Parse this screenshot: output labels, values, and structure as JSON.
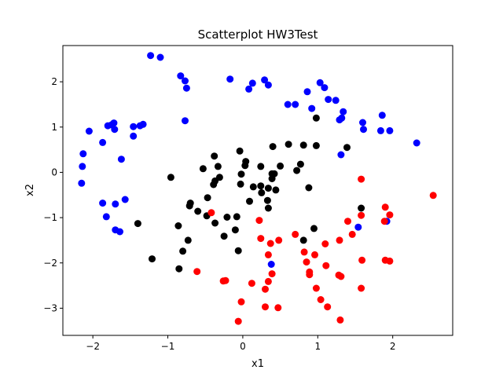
{
  "chart_data": {
    "type": "scatter",
    "title": "Scatterplot HW3Test",
    "xlabel": "x1",
    "ylabel": "x2",
    "xlim": [
      -2.4,
      2.8
    ],
    "ylim": [
      -3.6,
      2.8
    ],
    "xticks": [
      -2,
      -1,
      0,
      1,
      2
    ],
    "yticks": [
      -3,
      -2,
      -1,
      0,
      1,
      2
    ],
    "grid": false,
    "series": [
      {
        "color": "#0000ff",
        "points": [
          [
            -1.23,
            2.58
          ],
          [
            -1.1,
            2.54
          ],
          [
            -0.83,
            2.13
          ],
          [
            -0.77,
            2.02
          ],
          [
            -0.75,
            1.86
          ],
          [
            -0.17,
            2.06
          ],
          [
            0.08,
            1.84
          ],
          [
            0.13,
            1.97
          ],
          [
            0.29,
            2.04
          ],
          [
            0.34,
            1.93
          ],
          [
            1.03,
            1.98
          ],
          [
            1.09,
            1.87
          ],
          [
            0.86,
            1.78
          ],
          [
            1.14,
            1.61
          ],
          [
            1.24,
            1.59
          ],
          [
            0.6,
            1.5
          ],
          [
            0.7,
            1.5
          ],
          [
            0.92,
            1.41
          ],
          [
            1.34,
            1.34
          ],
          [
            1.29,
            1.16
          ],
          [
            1.32,
            1.2
          ],
          [
            1.6,
            1.1
          ],
          [
            1.61,
            0.95
          ],
          [
            1.86,
            1.26
          ],
          [
            1.84,
            0.92
          ],
          [
            1.96,
            0.92
          ],
          [
            2.32,
            0.65
          ],
          [
            1.31,
            0.39
          ],
          [
            -0.77,
            1.14
          ],
          [
            -1.72,
            1.09
          ],
          [
            -1.75,
            1.05
          ],
          [
            -1.8,
            1.03
          ],
          [
            -1.71,
            0.95
          ],
          [
            -1.46,
            1.01
          ],
          [
            -1.37,
            1.03
          ],
          [
            -1.33,
            1.06
          ],
          [
            -1.46,
            0.8
          ],
          [
            -2.05,
            0.91
          ],
          [
            -1.87,
            0.66
          ],
          [
            -1.62,
            0.29
          ],
          [
            -2.13,
            0.41
          ],
          [
            -2.14,
            0.13
          ],
          [
            -2.15,
            -0.24
          ],
          [
            -1.87,
            -0.68
          ],
          [
            -1.7,
            -0.7
          ],
          [
            -1.57,
            -0.6
          ],
          [
            -1.82,
            -0.98
          ],
          [
            -1.7,
            -1.27
          ],
          [
            -1.64,
            -1.31
          ],
          [
            0.38,
            -2.03
          ],
          [
            1.54,
            -1.21
          ],
          [
            1.92,
            -1.08
          ]
        ]
      },
      {
        "color": "#000000",
        "points": [
          [
            -0.38,
            0.36
          ],
          [
            -0.53,
            0.08
          ],
          [
            -0.33,
            0.13
          ],
          [
            -0.04,
            0.47
          ],
          [
            0.04,
            0.24
          ],
          [
            0.03,
            0.15
          ],
          [
            0.24,
            0.13
          ],
          [
            0.4,
            0.57
          ],
          [
            0.61,
            0.62
          ],
          [
            0.81,
            0.6
          ],
          [
            0.98,
            0.59
          ],
          [
            1.39,
            0.55
          ],
          [
            0.98,
            1.2
          ],
          [
            0.5,
            0.14
          ],
          [
            0.72,
            0.04
          ],
          [
            0.77,
            0.18
          ],
          [
            0.88,
            -0.34
          ],
          [
            0.39,
            -0.03
          ],
          [
            0.42,
            -0.03
          ],
          [
            0.44,
            -0.39
          ],
          [
            0.39,
            -0.14
          ],
          [
            0.34,
            -0.35
          ],
          [
            0.24,
            -0.3
          ],
          [
            0.14,
            -0.32
          ],
          [
            0.25,
            -0.45
          ],
          [
            0.33,
            -0.62
          ],
          [
            0.09,
            -0.64
          ],
          [
            0.34,
            -0.79
          ],
          [
            -0.02,
            -0.04
          ],
          [
            -0.03,
            -0.26
          ],
          [
            -0.31,
            -0.11
          ],
          [
            -0.37,
            -0.19
          ],
          [
            -0.39,
            -0.27
          ],
          [
            -0.47,
            -0.56
          ],
          [
            -0.6,
            -0.86
          ],
          [
            -0.7,
            -0.68
          ],
          [
            -0.71,
            -0.74
          ],
          [
            -0.48,
            -0.96
          ],
          [
            -0.37,
            -1.12
          ],
          [
            -0.21,
            -0.99
          ],
          [
            -0.08,
            -0.98
          ],
          [
            -0.1,
            -1.27
          ],
          [
            -0.25,
            -1.41
          ],
          [
            -0.86,
            -1.18
          ],
          [
            -0.73,
            -1.5
          ],
          [
            -0.8,
            -1.74
          ],
          [
            -0.96,
            -0.11
          ],
          [
            -1.4,
            -1.13
          ],
          [
            -1.21,
            -1.91
          ],
          [
            -0.85,
            -2.13
          ],
          [
            -0.06,
            -1.73
          ],
          [
            0.81,
            -1.5
          ],
          [
            0.95,
            -1.24
          ],
          [
            1.58,
            -0.79
          ]
        ]
      },
      {
        "color": "#ff0000",
        "points": [
          [
            2.54,
            -0.51
          ],
          [
            1.58,
            -0.15
          ],
          [
            1.58,
            -0.95
          ],
          [
            1.9,
            -0.77
          ],
          [
            1.96,
            -0.94
          ],
          [
            1.89,
            -1.08
          ],
          [
            1.4,
            -1.08
          ],
          [
            1.46,
            -1.37
          ],
          [
            1.29,
            -1.5
          ],
          [
            1.59,
            -1.94
          ],
          [
            1.9,
            -1.94
          ],
          [
            1.96,
            -1.96
          ],
          [
            1.58,
            -2.56
          ],
          [
            1.28,
            -2.27
          ],
          [
            1.31,
            -2.3
          ],
          [
            1.3,
            -3.26
          ],
          [
            1.11,
            -2.06
          ],
          [
            1.1,
            -1.58
          ],
          [
            0.96,
            -1.82
          ],
          [
            0.82,
            -1.76
          ],
          [
            0.85,
            -1.98
          ],
          [
            0.89,
            -2.2
          ],
          [
            0.89,
            -2.26
          ],
          [
            0.98,
            -2.56
          ],
          [
            1.04,
            -2.81
          ],
          [
            1.13,
            -2.97
          ],
          [
            0.7,
            -1.37
          ],
          [
            0.48,
            -1.5
          ],
          [
            0.37,
            -1.57
          ],
          [
            0.24,
            -1.46
          ],
          [
            0.22,
            -1.06
          ],
          [
            0.34,
            -1.82
          ],
          [
            0.39,
            -2.24
          ],
          [
            0.34,
            -2.41
          ],
          [
            0.3,
            -2.58
          ],
          [
            0.3,
            -2.97
          ],
          [
            0.47,
            -2.99
          ],
          [
            0.12,
            -2.45
          ],
          [
            -0.02,
            -2.86
          ],
          [
            -0.06,
            -3.29
          ],
          [
            -0.23,
            -2.39
          ],
          [
            -0.26,
            -2.4
          ],
          [
            -0.61,
            -2.19
          ],
          [
            -0.42,
            -0.89
          ]
        ]
      }
    ]
  }
}
